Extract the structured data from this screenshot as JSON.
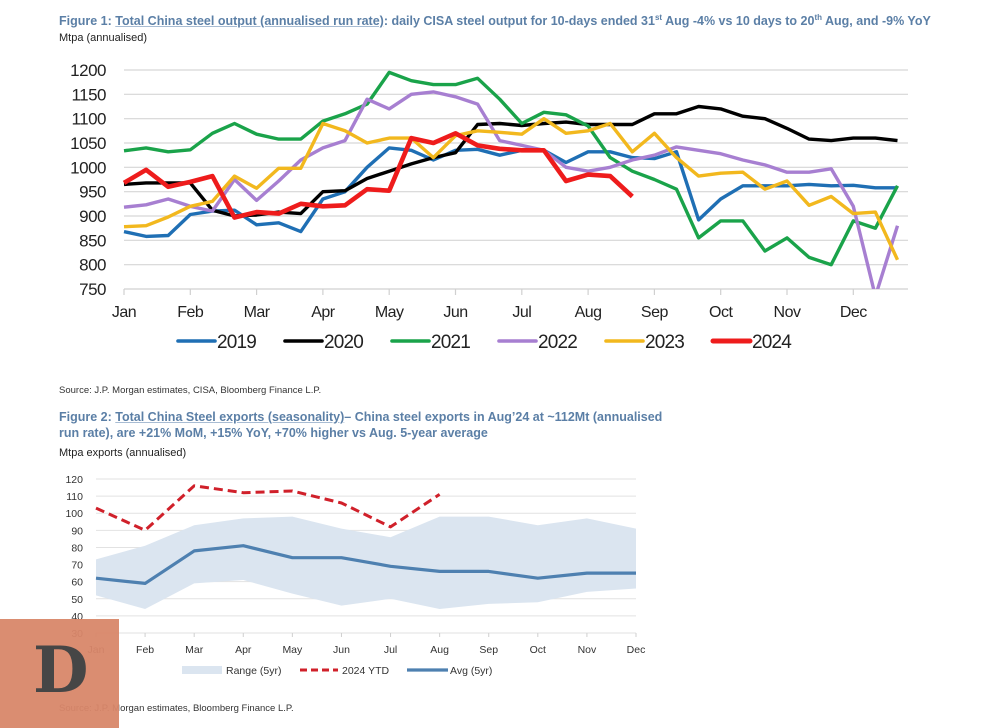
{
  "figure1": {
    "title_prefix": "Figure 1: ",
    "title_link": "Total China steel output (annualised run rate)",
    "title_rest_a": ": daily CISA steel output for 10-days ended 31",
    "title_sup_a": "st",
    "title_rest_b": " Aug -4% vs 10 days to 20",
    "title_sup_b": "th",
    "title_rest_c": " Aug, and -9% YoY",
    "unit": "Mtpa (annualised)",
    "source": "Source: J.P. Morgan estimates, CISA, Bloomberg Finance L.P."
  },
  "figure2": {
    "title_prefix": "Figure 2: ",
    "title_link": "Total China Steel exports (seasonality)",
    "title_rest_line1": "– China steel exports in Aug’24 at ~112Mt (annualised",
    "title_line2": "run rate), are +21% MoM, +15% YoY, +70% higher vs Aug. 5-year average",
    "unit": "Mtpa exports (annualised)",
    "source": "Source: J.P. Morgan estimates, Bloomberg Finance L.P."
  },
  "watermark": {
    "letter": "D",
    "color": "#d9876a"
  },
  "chart_data": [
    {
      "type": "line",
      "title": "Total China steel output (annualised run rate)",
      "ylabel": "Mtpa (annualised)",
      "xlabel": "",
      "ylim": [
        750,
        1200
      ],
      "yticks": [
        750,
        800,
        850,
        900,
        950,
        1000,
        1050,
        1100,
        1150,
        1200
      ],
      "xticks": [
        "Jan",
        "Feb",
        "Mar",
        "Apr",
        "May",
        "Jun",
        "Jul",
        "Aug",
        "Sep",
        "Oct",
        "Nov",
        "Dec"
      ],
      "points_per_month": 3,
      "grid": true,
      "legend": "bottom",
      "series": [
        {
          "name": "2019",
          "color": "#1f6fb4",
          "values": [
            868,
            858,
            860,
            903,
            910,
            912,
            882,
            886,
            868,
            935,
            950,
            1000,
            1040,
            1035,
            1015,
            1035,
            1037,
            1025,
            1035,
            1035,
            1010,
            1032,
            1032,
            1020,
            1018,
            1032,
            892,
            935,
            962,
            962,
            962,
            965,
            962,
            963,
            958,
            958
          ]
        },
        {
          "name": "2020",
          "color": "#000000",
          "values": [
            965,
            968,
            968,
            968,
            912,
            900,
            902,
            908,
            905,
            950,
            952,
            977,
            992,
            1007,
            1020,
            1030,
            1088,
            1090,
            1086,
            1090,
            1093,
            1088,
            1088,
            1088,
            1110,
            1110,
            1125,
            1120,
            1105,
            1100,
            1080,
            1058,
            1055,
            1060,
            1060,
            1055
          ]
        },
        {
          "name": "2021",
          "color": "#1aa34a",
          "values": [
            1034,
            1040,
            1032,
            1036,
            1070,
            1090,
            1068,
            1058,
            1058,
            1095,
            1110,
            1130,
            1195,
            1178,
            1170,
            1170,
            1183,
            1140,
            1090,
            1113,
            1108,
            1085,
            1020,
            992,
            975,
            955,
            855,
            890,
            890,
            828,
            855,
            815,
            800,
            890,
            875,
            962
          ]
        },
        {
          "name": "2022",
          "color": "#a77fd1",
          "values": [
            918,
            923,
            935,
            920,
            910,
            975,
            932,
            972,
            1015,
            1040,
            1055,
            1140,
            1120,
            1150,
            1155,
            1145,
            1130,
            1055,
            1045,
            1035,
            1000,
            992,
            1000,
            1015,
            1025,
            1042,
            1035,
            1028,
            1015,
            1005,
            990,
            990,
            997,
            920,
            725,
            880
          ]
        },
        {
          "name": "2023",
          "color": "#f2b81e",
          "values": [
            878,
            880,
            898,
            920,
            930,
            982,
            957,
            998,
            998,
            1090,
            1075,
            1050,
            1060,
            1060,
            1020,
            1065,
            1075,
            1072,
            1068,
            1100,
            1070,
            1075,
            1090,
            1032,
            1070,
            1020,
            982,
            988,
            990,
            955,
            972,
            922,
            940,
            905,
            908,
            810
          ]
        },
        {
          "name": "2024",
          "color": "#ee1c1c",
          "values": [
            968,
            995,
            960,
            970,
            982,
            897,
            908,
            905,
            925,
            920,
            922,
            955,
            952,
            1060,
            1050,
            1070,
            1045,
            1038,
            1035,
            1035,
            972,
            985,
            982,
            940
          ]
        }
      ]
    },
    {
      "type": "area",
      "title": "Total China Steel exports (seasonality)",
      "ylabel": "Mtpa exports (annualised)",
      "xlabel": "",
      "ylim": [
        30,
        120
      ],
      "yticks": [
        30,
        40,
        50,
        60,
        70,
        80,
        90,
        100,
        110,
        120
      ],
      "categories": [
        "Jan",
        "Feb",
        "Mar",
        "Apr",
        "May",
        "Jun",
        "Jul",
        "Aug",
        "Sep",
        "Oct",
        "Nov",
        "Dec"
      ],
      "grid": true,
      "legend": "bottom",
      "range_5yr": {
        "name": "Range (5yr)",
        "color": "#dbe5f0",
        "low": [
          52,
          44,
          59,
          61,
          53,
          46,
          50,
          44,
          47,
          48,
          54,
          56
        ],
        "high": [
          73,
          81,
          93,
          97,
          98,
          91,
          86,
          98,
          98,
          93,
          97,
          91
        ]
      },
      "series": [
        {
          "name": "2024 YTD",
          "color": "#d0202a",
          "style": "dashed",
          "values": [
            103,
            90,
            116,
            112,
            113,
            106,
            92,
            111
          ]
        },
        {
          "name": "Avg (5yr)",
          "color": "#4e80b0",
          "style": "solid",
          "values": [
            62,
            59,
            78,
            81,
            74,
            74,
            69,
            66,
            66,
            62,
            65,
            65
          ]
        }
      ]
    }
  ]
}
